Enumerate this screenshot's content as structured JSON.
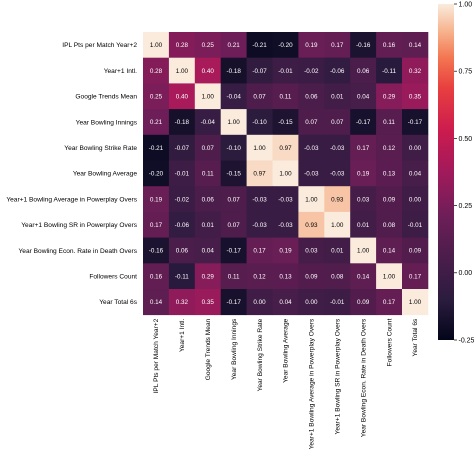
{
  "chart_data": {
    "type": "heatmap",
    "labels": [
      "IPL Pts per Match Year+2",
      "Year+1 Intl.",
      "Google Trends Mean",
      "Year Bowling Innings",
      "Year Bowling Strike Rate",
      "Year Bowling Average",
      "Year+1 Bowling Average in Powerplay Overs",
      "Year+1 Bowling SR in Powerplay Overs",
      "Year Bowling Econ. Rate in Death Overs",
      "Followers Count",
      "Year Total 6s"
    ],
    "matrix": [
      [
        1.0,
        0.28,
        0.25,
        0.21,
        -0.21,
        -0.2,
        0.19,
        0.17,
        -0.16,
        0.16,
        0.14
      ],
      [
        0.28,
        1.0,
        0.4,
        -0.18,
        -0.07,
        -0.01,
        -0.02,
        -0.06,
        0.06,
        -0.11,
        0.32
      ],
      [
        0.25,
        0.4,
        1.0,
        -0.04,
        0.07,
        0.11,
        0.06,
        0.01,
        0.04,
        0.29,
        0.35
      ],
      [
        0.21,
        -0.18,
        -0.04,
        1.0,
        -0.1,
        -0.15,
        0.07,
        0.07,
        -0.17,
        0.11,
        -0.17
      ],
      [
        -0.21,
        -0.07,
        0.07,
        -0.1,
        1.0,
        0.97,
        -0.03,
        -0.03,
        0.17,
        0.12,
        -0.0
      ],
      [
        -0.2,
        -0.01,
        0.11,
        -0.15,
        0.97,
        1.0,
        -0.03,
        -0.03,
        0.19,
        0.13,
        0.04
      ],
      [
        0.19,
        -0.02,
        0.06,
        0.07,
        -0.03,
        -0.03,
        1.0,
        0.93,
        0.03,
        0.09,
        -0.0
      ],
      [
        0.17,
        -0.06,
        0.01,
        0.07,
        -0.03,
        -0.03,
        0.93,
        1.0,
        0.01,
        0.08,
        -0.01
      ],
      [
        -0.16,
        0.06,
        0.04,
        -0.17,
        0.17,
        0.19,
        0.03,
        0.01,
        1.0,
        0.14,
        0.09
      ],
      [
        0.16,
        -0.11,
        0.29,
        0.11,
        0.12,
        0.13,
        0.09,
        0.08,
        0.14,
        1.0,
        0.17
      ],
      [
        0.14,
        0.32,
        0.35,
        -0.17,
        -0.0,
        0.04,
        -0.0,
        -0.01,
        0.09,
        0.17,
        1.0
      ]
    ],
    "colorbar": {
      "range": [
        -0.25,
        1.0
      ],
      "ticks": [
        -0.25,
        0.0,
        0.25,
        0.5,
        0.75,
        1.0
      ],
      "tick_labels": [
        "-0.25",
        "0.00",
        "0.25",
        "0.50",
        "0.75",
        "1.00"
      ],
      "colormap": "rocket",
      "low_color": "#03051a",
      "high_color": "#faebdd"
    },
    "title": "",
    "xlabel": "",
    "ylabel": "",
    "annotations": "cell values printed with two decimals"
  }
}
